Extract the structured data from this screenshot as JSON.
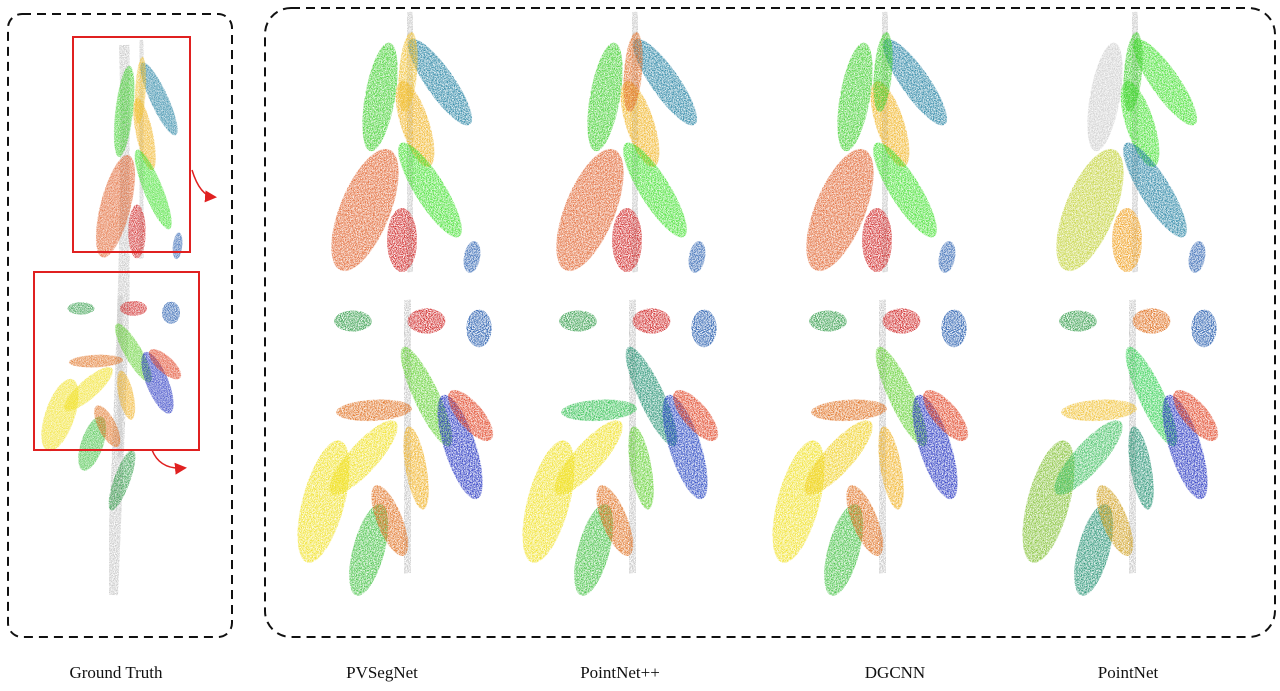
{
  "captions": {
    "ground_truth": "Ground Truth",
    "methods": [
      "PVSegNet",
      "PointNet++",
      "DGCNN",
      "PointNet"
    ]
  }
}
